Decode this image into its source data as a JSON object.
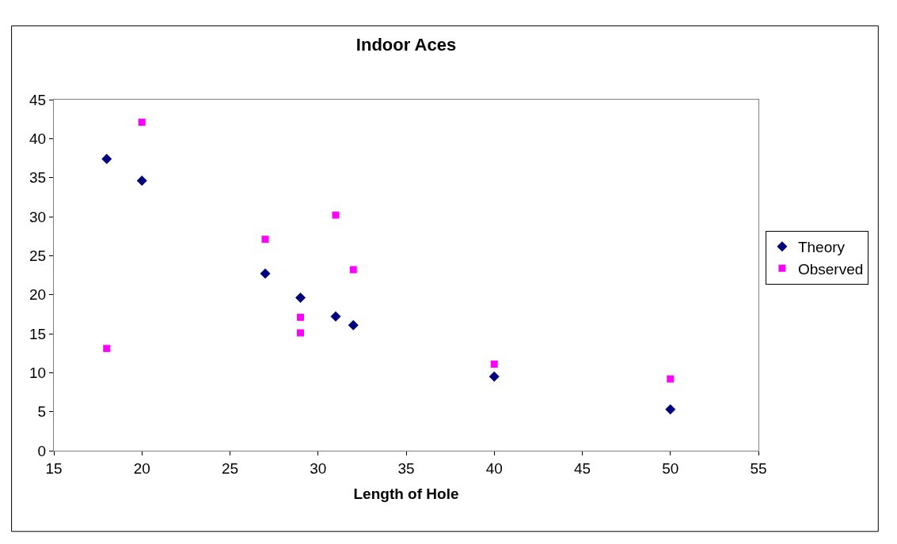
{
  "chart_data": {
    "type": "scatter",
    "title": "Indoor Aces",
    "xlabel": "Length of Hole",
    "series": [
      {
        "name": "Theory",
        "color": "#000080",
        "marker": "diamond",
        "x": [
          18,
          20,
          27,
          29,
          31,
          32,
          40,
          50
        ],
        "values": [
          37.4,
          34.6,
          22.7,
          19.6,
          17.2,
          16.1,
          9.5,
          5.3
        ]
      },
      {
        "name": "Observed",
        "color": "#ff00ff",
        "marker": "square",
        "x": [
          18,
          20,
          27,
          29,
          29,
          31,
          32,
          40,
          50
        ],
        "values": [
          13.1,
          42.1,
          27.1,
          17.1,
          15.1,
          30.2,
          23.2,
          11.1,
          9.2
        ]
      }
    ],
    "xlim": [
      15,
      55
    ],
    "xticks": [
      15,
      20,
      25,
      30,
      35,
      40,
      45,
      50,
      55
    ],
    "ylim": [
      0,
      45
    ],
    "yticks": [
      0,
      5,
      10,
      15,
      20,
      25,
      30,
      35,
      40,
      45
    ],
    "legend": "right"
  }
}
